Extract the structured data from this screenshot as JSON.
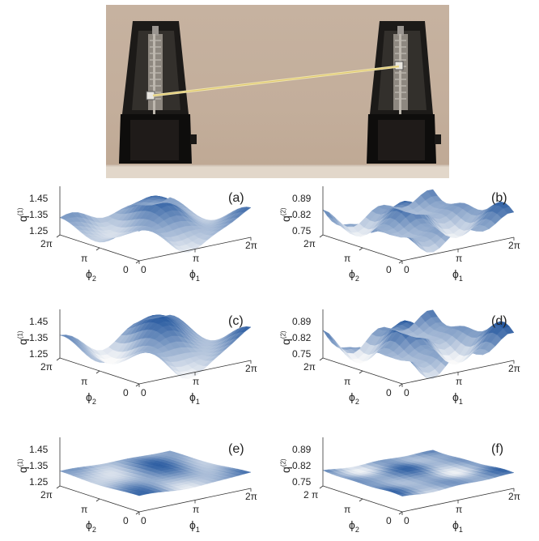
{
  "photo": {
    "alt_icon": "metronome-photo"
  },
  "panels": [
    {
      "id": "a",
      "label": "(a)",
      "yticks": [
        "1.45",
        "1.35",
        "1.25"
      ],
      "q_sup": "(1)",
      "phi2_ticks": [
        "2π",
        "π",
        "0"
      ],
      "phi1_ticks": [
        "0",
        "π",
        "2π"
      ],
      "q_name": "q",
      "phi2_name": "ϕ",
      "phi2_sub": "2",
      "phi1_name": "ϕ",
      "phi1_sub": "1"
    },
    {
      "id": "b",
      "label": "(b)",
      "yticks": [
        "0.89",
        "0.82",
        "0.75"
      ],
      "q_sup": "(2)",
      "phi2_ticks": [
        "2π",
        "π",
        "0"
      ],
      "phi1_ticks": [
        "0",
        "π",
        "2π"
      ],
      "q_name": "q",
      "phi2_name": "ϕ",
      "phi2_sub": "2",
      "phi1_name": "ϕ",
      "phi1_sub": "1"
    },
    {
      "id": "c",
      "label": "(c)",
      "yticks": [
        "1.45",
        "1.35",
        "1.25"
      ],
      "q_sup": "(1)",
      "phi2_ticks": [
        "2π",
        "π",
        "0"
      ],
      "phi1_ticks": [
        "0",
        "π",
        "2π"
      ],
      "q_name": "q",
      "phi2_name": "ϕ",
      "phi2_sub": "2",
      "phi1_name": "ϕ",
      "phi1_sub": "1"
    },
    {
      "id": "d",
      "label": "(d)",
      "yticks": [
        "0.89",
        "0.82",
        "0.75"
      ],
      "q_sup": "(2)",
      "phi2_ticks": [
        "2π",
        "π",
        "0"
      ],
      "phi1_ticks": [
        "0",
        "π",
        "2π"
      ],
      "q_name": "q",
      "phi2_name": "ϕ",
      "phi2_sub": "2",
      "phi1_name": "ϕ",
      "phi1_sub": "1"
    },
    {
      "id": "e",
      "label": "(e)",
      "yticks": [
        "1.45",
        "1.35",
        "1.25"
      ],
      "q_sup": "(1)",
      "phi2_ticks": [
        "2π",
        "π",
        "0"
      ],
      "phi1_ticks": [
        "0",
        "π",
        "2π"
      ],
      "q_name": "q",
      "phi2_name": "ϕ",
      "phi2_sub": "2",
      "phi1_name": "ϕ",
      "phi1_sub": "1"
    },
    {
      "id": "f",
      "label": "(f)",
      "yticks": [
        "0.89",
        "0.82",
        "0.75"
      ],
      "q_sup": "(2)",
      "phi2_ticks": [
        "2 π",
        "π",
        "0"
      ],
      "phi1_ticks": [
        "0",
        "π",
        "2π"
      ],
      "q_name": "q",
      "phi2_name": "ϕ",
      "phi2_sub": "2",
      "phi1_name": "ϕ",
      "phi1_sub": "1"
    }
  ]
}
